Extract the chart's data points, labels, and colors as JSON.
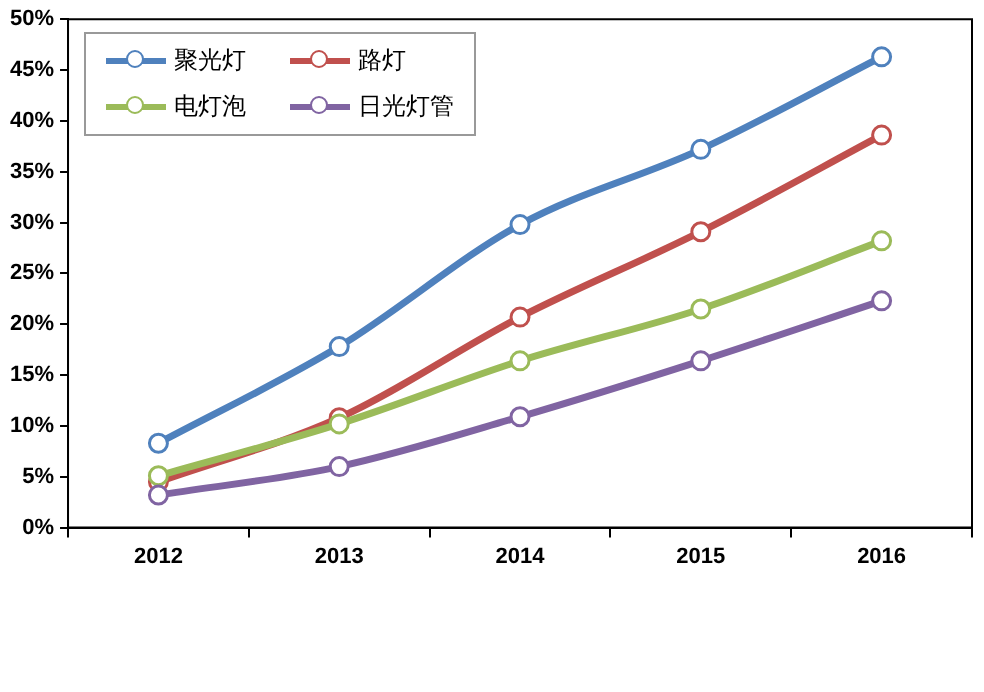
{
  "chart_data": {
    "type": "line",
    "categories": [
      "2012",
      "2013",
      "2014",
      "2015",
      "2016"
    ],
    "series": [
      {
        "name": "聚光灯",
        "color": "#4f81bd",
        "values": [
          8.3,
          17.8,
          29.8,
          37.2,
          46.3
        ]
      },
      {
        "name": "路灯",
        "color": "#c0504d",
        "values": [
          4.5,
          10.8,
          20.7,
          29.1,
          38.6
        ]
      },
      {
        "name": "电灯泡",
        "color": "#9bbb59",
        "values": [
          5.1,
          10.2,
          16.4,
          21.5,
          28.2
        ]
      },
      {
        "name": "日光灯管",
        "color": "#8064a2",
        "values": [
          3.2,
          6.0,
          10.9,
          16.4,
          22.3
        ]
      }
    ],
    "ylim": [
      0,
      50
    ],
    "yticks": [
      {
        "value": 0,
        "label": "0%"
      },
      {
        "value": 5,
        "label": "5%"
      },
      {
        "value": 10,
        "label": "10%"
      },
      {
        "value": 15,
        "label": "15%"
      },
      {
        "value": 20,
        "label": "20%"
      },
      {
        "value": 25,
        "label": "25%"
      },
      {
        "value": 30,
        "label": "30%"
      },
      {
        "value": 35,
        "label": "35%"
      },
      {
        "value": 40,
        "label": "40%"
      },
      {
        "value": 45,
        "label": "45%"
      },
      {
        "value": 50,
        "label": "50%"
      }
    ],
    "grid": false,
    "legend": "top left",
    "marker": "circle",
    "line_style": "solid"
  }
}
